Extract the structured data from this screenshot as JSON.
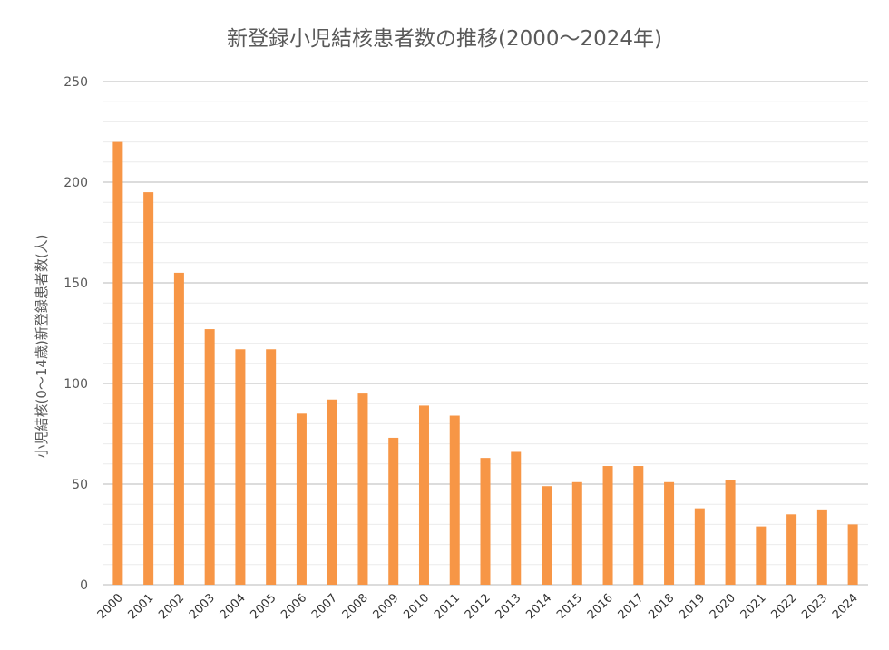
{
  "chart_data": {
    "type": "bar",
    "title": "新登録小児結核患者数の推移(2000～2024年)",
    "xlabel": "",
    "ylabel": "小児結核(0～14歳)新登録患者数(人)",
    "ylim": [
      0,
      250
    ],
    "yticks": [
      0,
      50,
      100,
      150,
      200,
      250
    ],
    "grid": true,
    "legend": "none",
    "bar_color": "#F79646",
    "categories": [
      "2000",
      "2001",
      "2002",
      "2003",
      "2004",
      "2005",
      "2006",
      "2007",
      "2008",
      "2009",
      "2010",
      "2011",
      "2012",
      "2013",
      "2014",
      "2015",
      "2016",
      "2017",
      "2018",
      "2019",
      "2020",
      "2021",
      "2022",
      "2023",
      "2024"
    ],
    "values": [
      220,
      195,
      155,
      127,
      117,
      117,
      85,
      92,
      95,
      73,
      89,
      84,
      63,
      66,
      49,
      51,
      59,
      59,
      51,
      38,
      52,
      29,
      35,
      37,
      30
    ]
  }
}
